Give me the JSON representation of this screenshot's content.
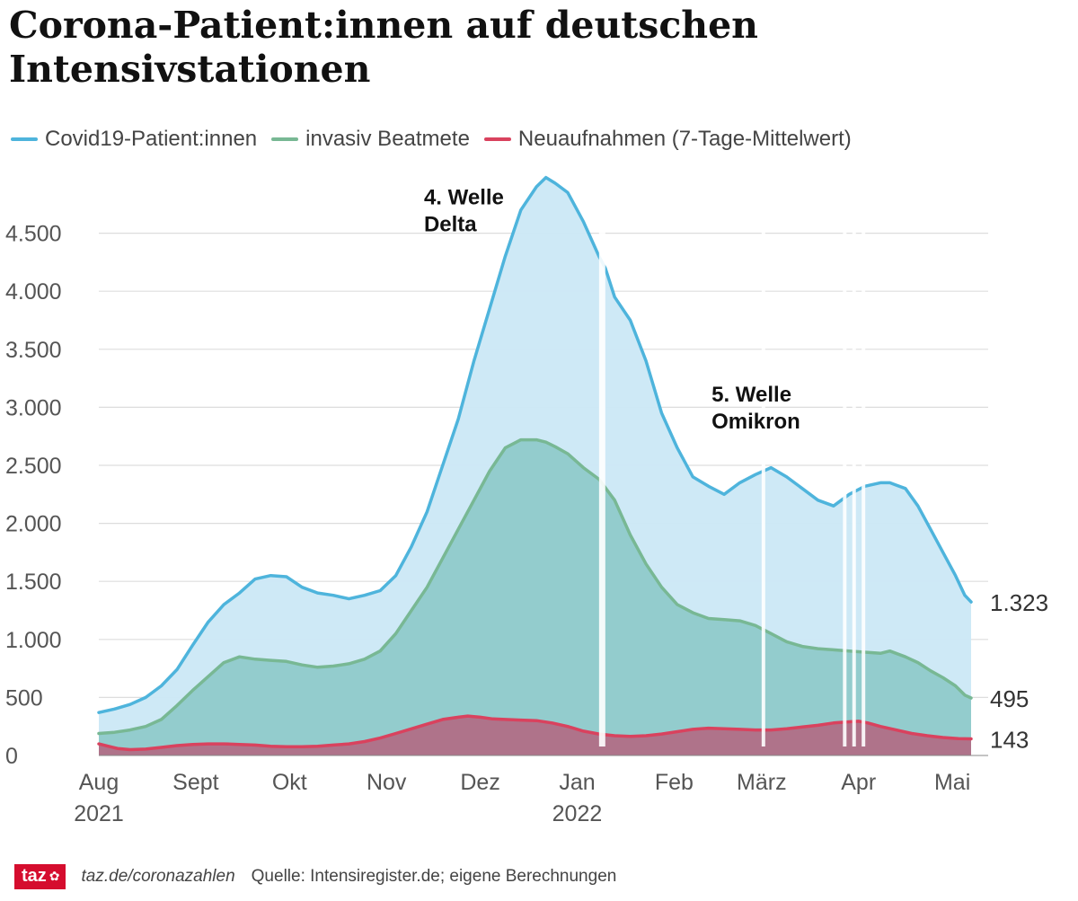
{
  "title": "Corona-Patient:innen auf deutschen Intensivstationen",
  "legend": [
    {
      "label": "Covid19-Patient:innen",
      "color": "#4eb4dc"
    },
    {
      "label": "invasiv Beatmete",
      "color": "#78b894"
    },
    {
      "label": "Neuaufnahmen (7-Tage-Mittelwert)",
      "color": "#d9425e"
    }
  ],
  "footer": {
    "logo": "taz",
    "logo_mark": "✿",
    "site": "taz.de/coronazahlen",
    "source": "Quelle: Intensiregister.de; eigene Berechnungen"
  },
  "chart_data": {
    "type": "area",
    "title": "Corona-Patient:innen auf deutschen Intensivstationen",
    "x_unit": "days since 2021-08-01",
    "xlim": [
      0,
      279
    ],
    "ylim": [
      0,
      5000
    ],
    "grid": true,
    "y_ticks": [
      {
        "value": 0,
        "label": "0"
      },
      {
        "value": 500,
        "label": "500"
      },
      {
        "value": 1000,
        "label": "1.000"
      },
      {
        "value": 1500,
        "label": "1.500"
      },
      {
        "value": 2000,
        "label": "2.000"
      },
      {
        "value": 2500,
        "label": "2.500"
      },
      {
        "value": 3000,
        "label": "3.000"
      },
      {
        "value": 3500,
        "label": "3.500"
      },
      {
        "value": 4000,
        "label": "4.000"
      },
      {
        "value": 4500,
        "label": "4.500"
      }
    ],
    "x_ticks": [
      {
        "day": 0,
        "label": "Aug",
        "sublabel": "2021"
      },
      {
        "day": 31,
        "label": "Sept"
      },
      {
        "day": 61,
        "label": "Okt"
      },
      {
        "day": 92,
        "label": "Nov"
      },
      {
        "day": 122,
        "label": "Dez"
      },
      {
        "day": 153,
        "label": "Jan",
        "sublabel": "2022"
      },
      {
        "day": 184,
        "label": "Feb"
      },
      {
        "day": 212,
        "label": "März"
      },
      {
        "day": 243,
        "label": "Apr"
      },
      {
        "day": 273,
        "label": "Mai"
      }
    ],
    "series": [
      {
        "name": "Covid19-Patient:innen",
        "color": "#4eb4dc",
        "fill": "#cbe8f5",
        "end_label": "1.323",
        "points": [
          [
            0,
            370
          ],
          [
            5,
            400
          ],
          [
            10,
            440
          ],
          [
            15,
            500
          ],
          [
            20,
            600
          ],
          [
            25,
            740
          ],
          [
            30,
            950
          ],
          [
            35,
            1150
          ],
          [
            40,
            1300
          ],
          [
            45,
            1400
          ],
          [
            50,
            1520
          ],
          [
            55,
            1550
          ],
          [
            60,
            1540
          ],
          [
            65,
            1450
          ],
          [
            70,
            1400
          ],
          [
            75,
            1380
          ],
          [
            80,
            1350
          ],
          [
            85,
            1380
          ],
          [
            90,
            1420
          ],
          [
            95,
            1550
          ],
          [
            100,
            1800
          ],
          [
            105,
            2100
          ],
          [
            110,
            2500
          ],
          [
            115,
            2900
          ],
          [
            120,
            3400
          ],
          [
            125,
            3850
          ],
          [
            130,
            4300
          ],
          [
            135,
            4700
          ],
          [
            140,
            4900
          ],
          [
            143,
            4980
          ],
          [
            146,
            4930
          ],
          [
            150,
            4850
          ],
          [
            155,
            4600
          ],
          [
            160,
            4300
          ],
          [
            162,
            4200
          ],
          [
            165,
            3950
          ],
          [
            170,
            3750
          ],
          [
            175,
            3400
          ],
          [
            180,
            2950
          ],
          [
            185,
            2650
          ],
          [
            190,
            2400
          ],
          [
            195,
            2320
          ],
          [
            200,
            2250
          ],
          [
            205,
            2350
          ],
          [
            210,
            2420
          ],
          [
            215,
            2480
          ],
          [
            220,
            2400
          ],
          [
            225,
            2300
          ],
          [
            230,
            2200
          ],
          [
            235,
            2150
          ],
          [
            240,
            2250
          ],
          [
            245,
            2320
          ],
          [
            250,
            2350
          ],
          [
            253,
            2350
          ],
          [
            255,
            2330
          ],
          [
            258,
            2300
          ],
          [
            262,
            2150
          ],
          [
            266,
            1950
          ],
          [
            270,
            1750
          ],
          [
            274,
            1550
          ],
          [
            277,
            1380
          ],
          [
            279,
            1323
          ]
        ]
      },
      {
        "name": "invasiv Beatmete",
        "color": "#78b894",
        "fill": "#8fcaca",
        "end_label": "495",
        "points": [
          [
            0,
            190
          ],
          [
            5,
            200
          ],
          [
            10,
            220
          ],
          [
            15,
            250
          ],
          [
            20,
            310
          ],
          [
            25,
            430
          ],
          [
            30,
            560
          ],
          [
            35,
            680
          ],
          [
            40,
            800
          ],
          [
            45,
            850
          ],
          [
            50,
            830
          ],
          [
            55,
            820
          ],
          [
            60,
            810
          ],
          [
            65,
            780
          ],
          [
            70,
            760
          ],
          [
            75,
            770
          ],
          [
            80,
            790
          ],
          [
            85,
            830
          ],
          [
            90,
            900
          ],
          [
            95,
            1050
          ],
          [
            100,
            1250
          ],
          [
            105,
            1450
          ],
          [
            110,
            1700
          ],
          [
            115,
            1950
          ],
          [
            120,
            2200
          ],
          [
            125,
            2450
          ],
          [
            130,
            2650
          ],
          [
            135,
            2720
          ],
          [
            140,
            2720
          ],
          [
            143,
            2700
          ],
          [
            146,
            2660
          ],
          [
            150,
            2600
          ],
          [
            155,
            2480
          ],
          [
            160,
            2380
          ],
          [
            165,
            2200
          ],
          [
            170,
            1900
          ],
          [
            175,
            1650
          ],
          [
            180,
            1450
          ],
          [
            185,
            1300
          ],
          [
            190,
            1230
          ],
          [
            195,
            1180
          ],
          [
            200,
            1170
          ],
          [
            205,
            1160
          ],
          [
            210,
            1120
          ],
          [
            215,
            1050
          ],
          [
            220,
            980
          ],
          [
            225,
            940
          ],
          [
            230,
            920
          ],
          [
            235,
            910
          ],
          [
            240,
            900
          ],
          [
            245,
            890
          ],
          [
            250,
            880
          ],
          [
            253,
            900
          ],
          [
            255,
            880
          ],
          [
            258,
            850
          ],
          [
            262,
            800
          ],
          [
            266,
            730
          ],
          [
            270,
            670
          ],
          [
            274,
            600
          ],
          [
            277,
            520
          ],
          [
            279,
            495
          ]
        ]
      },
      {
        "name": "Neuaufnahmen (7-Tage-Mittelwert)",
        "color": "#d9425e",
        "fill": "#b06e86",
        "end_label": "143",
        "points": [
          [
            0,
            100
          ],
          [
            3,
            80
          ],
          [
            6,
            60
          ],
          [
            10,
            50
          ],
          [
            15,
            55
          ],
          [
            20,
            70
          ],
          [
            25,
            85
          ],
          [
            30,
            95
          ],
          [
            35,
            100
          ],
          [
            40,
            100
          ],
          [
            45,
            95
          ],
          [
            50,
            90
          ],
          [
            55,
            80
          ],
          [
            60,
            75
          ],
          [
            65,
            75
          ],
          [
            70,
            80
          ],
          [
            75,
            90
          ],
          [
            80,
            100
          ],
          [
            85,
            120
          ],
          [
            90,
            150
          ],
          [
            95,
            190
          ],
          [
            100,
            230
          ],
          [
            105,
            270
          ],
          [
            110,
            310
          ],
          [
            115,
            330
          ],
          [
            118,
            340
          ],
          [
            122,
            330
          ],
          [
            126,
            315
          ],
          [
            130,
            310
          ],
          [
            135,
            305
          ],
          [
            140,
            300
          ],
          [
            145,
            280
          ],
          [
            150,
            250
          ],
          [
            155,
            210
          ],
          [
            160,
            185
          ],
          [
            165,
            170
          ],
          [
            170,
            165
          ],
          [
            175,
            170
          ],
          [
            180,
            185
          ],
          [
            185,
            205
          ],
          [
            190,
            225
          ],
          [
            195,
            235
          ],
          [
            200,
            230
          ],
          [
            205,
            225
          ],
          [
            210,
            220
          ],
          [
            215,
            220
          ],
          [
            220,
            230
          ],
          [
            225,
            245
          ],
          [
            230,
            260
          ],
          [
            235,
            280
          ],
          [
            240,
            290
          ],
          [
            243,
            295
          ],
          [
            246,
            280
          ],
          [
            250,
            250
          ],
          [
            255,
            220
          ],
          [
            260,
            190
          ],
          [
            265,
            170
          ],
          [
            270,
            155
          ],
          [
            275,
            145
          ],
          [
            279,
            143
          ]
        ]
      }
    ],
    "gaps": [
      [
        160,
        162
      ],
      [
        212,
        213
      ],
      [
        238,
        239
      ],
      [
        241,
        242
      ],
      [
        244,
        245
      ]
    ],
    "annotations": [
      {
        "lines": [
          "4. Welle",
          "Delta"
        ],
        "day": 104,
        "value": 4750
      },
      {
        "lines": [
          "5. Welle",
          "Omikron"
        ],
        "day": 196,
        "value": 3050
      }
    ]
  }
}
